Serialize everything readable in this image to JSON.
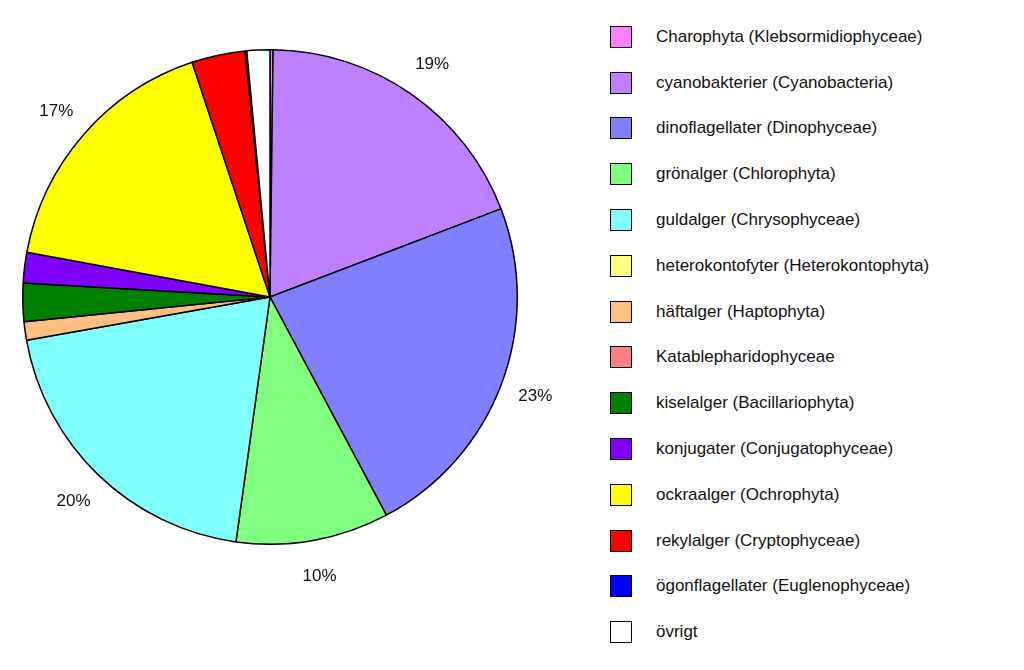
{
  "chart_data": {
    "type": "pie",
    "categories": [
      "Charophyta (Klebsormidiophyceae)",
      "cyanobakterier (Cyanobacteria)",
      "dinoflagellater (Dinophyceae)",
      "grönalger (Chlorophyta)",
      "guldalger (Chrysophyceae)",
      "heterokontofyter (Heterokontophyta)",
      "häftalger (Haptophyta)",
      "Katablepharidophyceae",
      "kiselalger (Bacillariophyta)",
      "konjugater (Conjugatophyceae)",
      "ockraalger (Ochrophyta)",
      "rekylalger (Cryptophyceae)",
      "ögonflagellater (Euglenophyceae)",
      "övrigt"
    ],
    "values": [
      0.2,
      19,
      23,
      10,
      20,
      0,
      1.2,
      0,
      2.5,
      2,
      17,
      3.5,
      0.1,
      1.5
    ],
    "value_labels": [
      null,
      "19%",
      "23%",
      "10%",
      "20%",
      null,
      null,
      null,
      null,
      null,
      "17%",
      null,
      null,
      null
    ],
    "colors": [
      "#ff80ff",
      "#bf80ff",
      "#8080ff",
      "#80ff80",
      "#80ffff",
      "#ffff80",
      "#ffbf80",
      "#ff8080",
      "#008000",
      "#8000ff",
      "#ffff00",
      "#ff0000",
      "#0000ff",
      "#ffffff"
    ],
    "data_labels": true,
    "legend": "right"
  }
}
